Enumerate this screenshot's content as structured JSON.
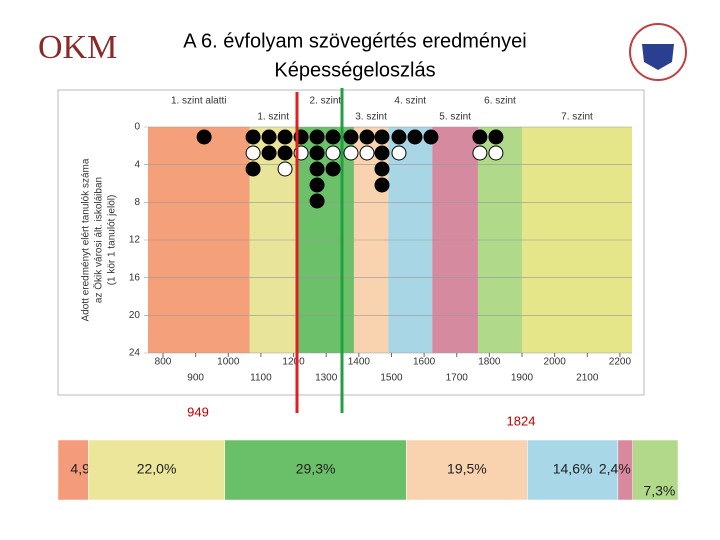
{
  "logo": "OKM",
  "title": "A 6. évfolyam szövegértés eredményei",
  "subtitle": "Képességeloszlás",
  "chart_data": [
    {
      "type": "dot",
      "ylabel": [
        "Adott eredményt elért tanulók száma",
        "az Ökik városi ált. iskoláiban",
        "(1 kör 1 tanulót jelöl)"
      ],
      "xlim": [
        754,
        2237
      ],
      "ylim": [
        0,
        24
      ],
      "xticks": [
        800,
        900,
        1000,
        1100,
        1200,
        1300,
        1400,
        1500,
        1600,
        1700,
        1800,
        1900,
        2000,
        2100,
        2200
      ],
      "yticks": [
        0,
        4,
        8,
        12,
        16,
        20,
        24
      ],
      "bands": {
        "names": [
          "1. szint alatti",
          "1. szint",
          "2. szint",
          "3. szint",
          "4. szint",
          "5. szint",
          "6. szint",
          "7. szint"
        ],
        "edges": [
          754,
          1065,
          1210,
          1385,
          1490,
          1625,
          1765,
          1900,
          2237
        ],
        "colors": [
          "#f4a07a",
          "#e8e59a",
          "#6cc06a",
          "#f9d3b0",
          "#a9d6e5",
          "#d68aa0",
          "#b0d98a",
          "#e5e58a"
        ]
      },
      "columns": [
        {
          "x": 926,
          "dots": [
            "black"
          ]
        },
        {
          "x": 1076,
          "dots": [
            "black",
            "white",
            "black"
          ]
        },
        {
          "x": 1125,
          "dots": [
            "black",
            "black"
          ]
        },
        {
          "x": 1174,
          "dots": [
            "black",
            "black",
            "white"
          ]
        },
        {
          "x": 1223,
          "dots": [
            "black",
            "white"
          ]
        },
        {
          "x": 1272,
          "dots": [
            "black",
            "black",
            "black",
            "black",
            "black"
          ]
        },
        {
          "x": 1321,
          "dots": [
            "black",
            "white",
            "black"
          ]
        },
        {
          "x": 1376,
          "dots": [
            "black",
            "white"
          ]
        },
        {
          "x": 1425,
          "dots": [
            "black",
            "white"
          ]
        },
        {
          "x": 1471,
          "dots": [
            "black",
            "black",
            "black",
            "black"
          ]
        },
        {
          "x": 1523,
          "dots": [
            "black",
            "white"
          ]
        },
        {
          "x": 1572,
          "dots": [
            "black"
          ]
        },
        {
          "x": 1621,
          "dots": [
            "black"
          ]
        },
        {
          "x": 1771,
          "dots": [
            "black",
            "white"
          ]
        },
        {
          "x": 1820,
          "dots": [
            "black",
            "white"
          ]
        }
      ],
      "annotations": [
        "949",
        "1824"
      ]
    },
    {
      "type": "stacked_bar",
      "values": [
        4.9,
        22.0,
        29.3,
        19.5,
        14.6,
        2.4,
        7.3
      ],
      "value_labels": [
        "4,9%",
        "22,0%",
        "29,3%",
        "19,5%",
        "14,6%",
        "2,4%",
        "7,3%"
      ],
      "colors": [
        "#f39b7a",
        "#ece69a",
        "#6abf69",
        "#f9d2b0",
        "#a8d8e8",
        "#d9899f",
        "#b2d88a"
      ]
    }
  ]
}
